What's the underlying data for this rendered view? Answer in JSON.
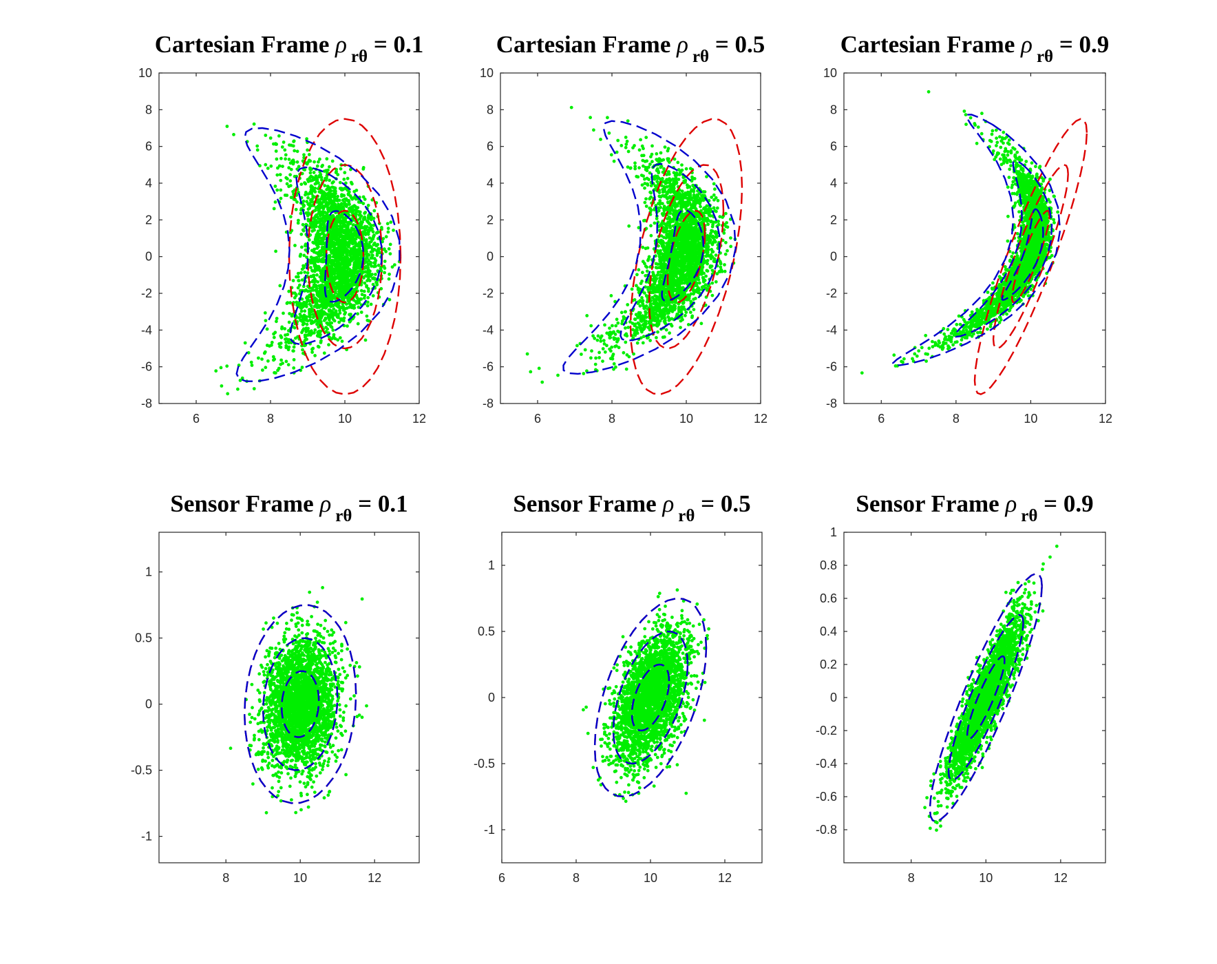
{
  "chart_data": [
    {
      "type": "scatter",
      "title": {
        "prefix": "Cartesian Frame ",
        "greek": "ρ",
        "sub": "rθ",
        "suffix": " = 0.1"
      },
      "xlim": [
        5,
        12
      ],
      "ylim": [
        -8,
        10
      ],
      "xticks": [
        6,
        8,
        10,
        12
      ],
      "yticks": [
        -8,
        -6,
        -4,
        -2,
        0,
        2,
        4,
        6,
        8,
        10
      ],
      "scatter": {
        "frame": "cartesian",
        "rho": 0.1,
        "n": 2800,
        "r_mean": 10,
        "r_std": 0.5,
        "theta_mean": 0,
        "theta_std": 0.25,
        "color": "#00ee00"
      },
      "ellipses": [
        {
          "color": "#dd0000",
          "cx": 10,
          "cy": 0,
          "rx": [
            0.5,
            1.0,
            1.5
          ],
          "ry": [
            2.5,
            5.0,
            7.5
          ],
          "angle": 0
        },
        {
          "color": "#0000cc",
          "frame": "polar",
          "r_std": 0.5,
          "theta_std": 0.25,
          "rho": 0.1,
          "levels": [
            1,
            2,
            3
          ]
        }
      ]
    },
    {
      "type": "scatter",
      "title": {
        "prefix": "Cartesian Frame ",
        "greek": "ρ",
        "sub": "rθ",
        "suffix": " = 0.5"
      },
      "xlim": [
        5,
        12
      ],
      "ylim": [
        -8,
        10
      ],
      "xticks": [
        6,
        8,
        10,
        12
      ],
      "yticks": [
        -8,
        -6,
        -4,
        -2,
        0,
        2,
        4,
        6,
        8,
        10
      ],
      "scatter": {
        "frame": "cartesian",
        "rho": 0.5,
        "n": 2800,
        "r_mean": 10,
        "r_std": 0.5,
        "theta_mean": 0,
        "theta_std": 0.25,
        "color": "#00ee00"
      },
      "ellipses": [
        {
          "color": "#dd0000",
          "cx": 10,
          "cy": 0,
          "rx": [
            0.5,
            1.0,
            1.5
          ],
          "ry": [
            2.5,
            5.0,
            7.5
          ],
          "angle": 0.1,
          "rho": 0.5
        },
        {
          "color": "#0000cc",
          "frame": "polar",
          "r_std": 0.5,
          "theta_std": 0.25,
          "rho": 0.5,
          "levels": [
            1,
            2,
            3
          ]
        }
      ]
    },
    {
      "type": "scatter",
      "title": {
        "prefix": "Cartesian Frame ",
        "greek": "ρ",
        "sub": "rθ",
        "suffix": " = 0.9"
      },
      "xlim": [
        5,
        12
      ],
      "ylim": [
        -8,
        10
      ],
      "xticks": [
        6,
        8,
        10,
        12
      ],
      "yticks": [
        -8,
        -6,
        -4,
        -2,
        0,
        2,
        4,
        6,
        8,
        10
      ],
      "scatter": {
        "frame": "cartesian",
        "rho": 0.9,
        "n": 2800,
        "r_mean": 10,
        "r_std": 0.5,
        "theta_mean": 0,
        "theta_std": 0.25,
        "color": "#00ee00"
      },
      "ellipses": [
        {
          "color": "#dd0000",
          "cx": 10,
          "cy": 0,
          "rx": [
            0.5,
            1.0,
            1.5
          ],
          "ry": [
            2.5,
            5.0,
            7.5
          ],
          "angle": 0.2,
          "rho": 0.9
        },
        {
          "color": "#0000cc",
          "frame": "polar",
          "r_std": 0.5,
          "theta_std": 0.25,
          "rho": 0.9,
          "levels": [
            1,
            2,
            3
          ]
        }
      ]
    },
    {
      "type": "scatter",
      "title": {
        "prefix": "Sensor Frame ",
        "greek": "ρ",
        "sub": "rθ",
        "suffix": " = 0.1"
      },
      "xlim": [
        6.2,
        13.2
      ],
      "ylim": [
        -1.2,
        1.3
      ],
      "xticks": [
        8,
        10,
        12
      ],
      "yticks": [
        -1,
        -0.5,
        0,
        0.5,
        1
      ],
      "scatter": {
        "frame": "sensor",
        "rho": 0.1,
        "n": 2800,
        "r_mean": 10,
        "r_std": 0.5,
        "theta_mean": 0,
        "theta_std": 0.25,
        "color": "#00ee00"
      },
      "ellipses": [
        {
          "color": "#dd0000",
          "frame": "sensor",
          "r_std": 0.5,
          "theta_std": 0.25,
          "rho": 0.1,
          "levels": [
            1,
            2,
            3
          ]
        },
        {
          "color": "#0000cc",
          "frame": "sensor",
          "r_std": 0.5,
          "theta_std": 0.25,
          "rho": 0.1,
          "levels": [
            1,
            2,
            3
          ]
        }
      ]
    },
    {
      "type": "scatter",
      "title": {
        "prefix": "Sensor Frame ",
        "greek": "ρ",
        "sub": "rθ",
        "suffix": " = 0.5"
      },
      "xlim": [
        6,
        13
      ],
      "ylim": [
        -1.25,
        1.25
      ],
      "xticks": [
        6,
        8,
        10,
        12
      ],
      "yticks": [
        -1,
        -0.5,
        0,
        0.5,
        1
      ],
      "scatter": {
        "frame": "sensor",
        "rho": 0.5,
        "n": 2800,
        "r_mean": 10,
        "r_std": 0.5,
        "theta_mean": 0,
        "theta_std": 0.25,
        "color": "#00ee00"
      },
      "ellipses": [
        {
          "color": "#dd0000",
          "frame": "sensor",
          "r_std": 0.5,
          "theta_std": 0.25,
          "rho": 0.5,
          "levels": [
            1,
            2,
            3
          ]
        },
        {
          "color": "#0000cc",
          "frame": "sensor",
          "r_std": 0.5,
          "theta_std": 0.25,
          "rho": 0.5,
          "levels": [
            1,
            2,
            3
          ]
        }
      ]
    },
    {
      "type": "scatter",
      "title": {
        "prefix": "Sensor Frame ",
        "greek": "ρ",
        "sub": "rθ",
        "suffix": " = 0.9"
      },
      "xlim": [
        6.2,
        13.2
      ],
      "ylim": [
        -1,
        1
      ],
      "xticks": [
        8,
        10,
        12
      ],
      "yticks": [
        -0.8,
        -0.6,
        -0.4,
        -0.2,
        0,
        0.2,
        0.4,
        0.6,
        0.8,
        1
      ],
      "scatter": {
        "frame": "sensor",
        "rho": 0.9,
        "n": 2800,
        "r_mean": 10,
        "r_std": 0.5,
        "theta_mean": 0,
        "theta_std": 0.25,
        "color": "#00ee00"
      },
      "ellipses": [
        {
          "color": "#dd0000",
          "frame": "sensor",
          "r_std": 0.5,
          "theta_std": 0.25,
          "rho": 0.9,
          "levels": [
            1,
            2,
            3
          ]
        },
        {
          "color": "#0000cc",
          "frame": "sensor",
          "r_std": 0.5,
          "theta_std": 0.25,
          "rho": 0.9,
          "levels": [
            1,
            2,
            3
          ]
        }
      ]
    }
  ]
}
